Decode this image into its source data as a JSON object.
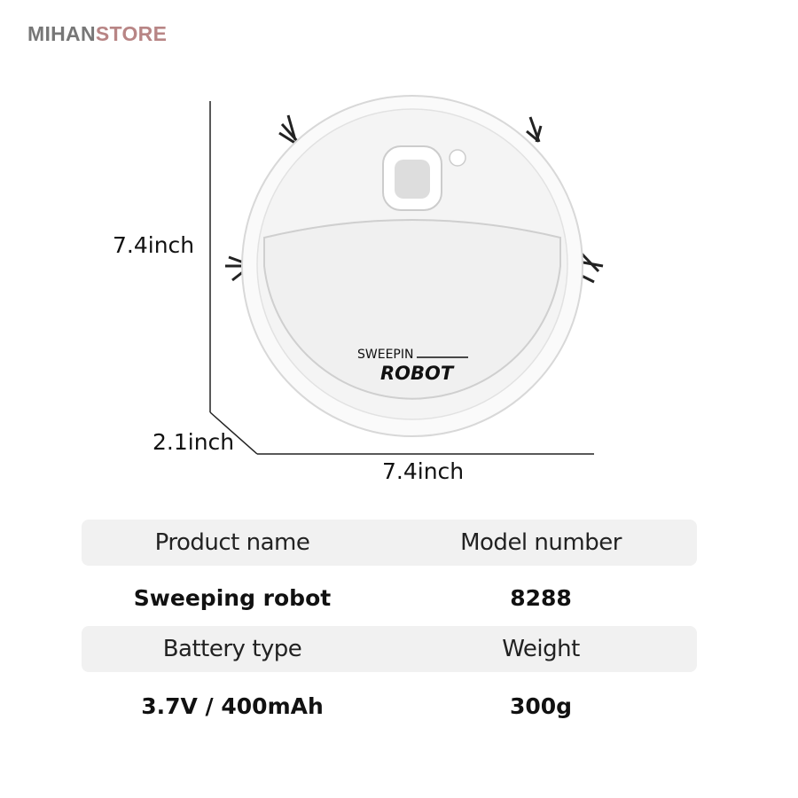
{
  "brand": {
    "part1": "MIHAN",
    "part2": "STORE"
  },
  "dimensions": {
    "height": "7.4inch",
    "depth": "2.1inch",
    "width": "7.4inch"
  },
  "product_label": {
    "line1": "SWEEPIN",
    "line2": "ROBOT"
  },
  "specs": [
    {
      "label": "Product name",
      "value": "Sweeping robot"
    },
    {
      "label": "Model number",
      "value": "8288"
    },
    {
      "label": "Battery type",
      "value": "3.7V / 400mAh"
    },
    {
      "label": "Weight",
      "value": "300g"
    }
  ]
}
